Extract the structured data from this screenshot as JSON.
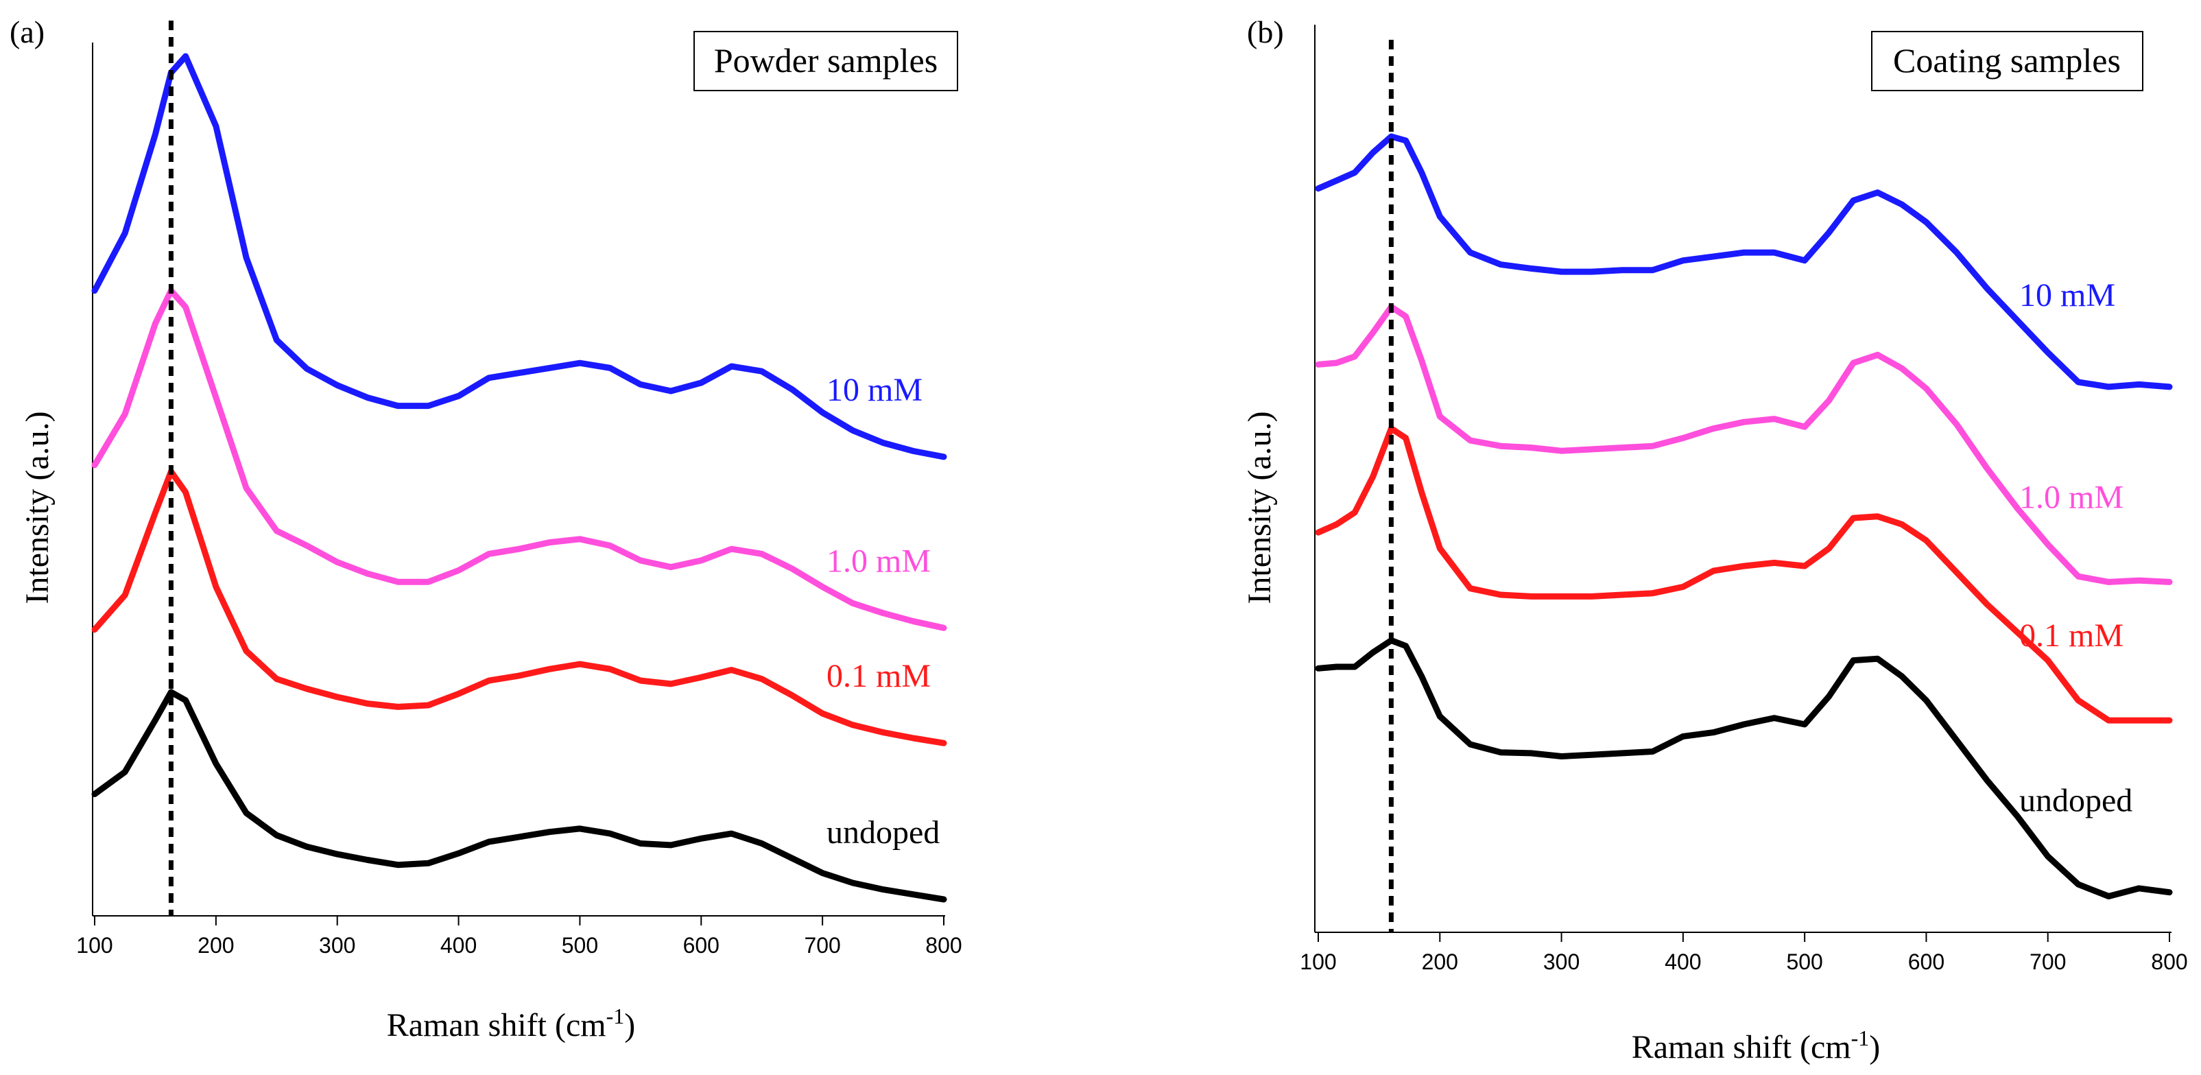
{
  "colors": {
    "undoped": "#000000",
    "0.1 mM": "#ff1a1a",
    "1.0 mM": "#ff4fdc",
    "10 mM": "#1a1aff"
  },
  "chart_data": [
    {
      "type": "line",
      "panel": "(a)",
      "title": "Powder samples",
      "xlabel": "Raman shift (cm-1)",
      "xlabel_main": "Raman shift (cm",
      "xlabel_sup": "-1",
      "xlabel_end": ")",
      "ylabel": "Intensity (a.u.)",
      "xlim": [
        100,
        800
      ],
      "xticks": [
        100,
        200,
        300,
        400,
        500,
        600,
        700,
        800
      ],
      "x_marker": 163,
      "y_units": "arbitrary, offset",
      "grid": false,
      "x": [
        100,
        125,
        150,
        163,
        175,
        200,
        225,
        250,
        275,
        300,
        325,
        350,
        375,
        400,
        425,
        450,
        475,
        500,
        525,
        550,
        575,
        600,
        625,
        650,
        675,
        700,
        725,
        750,
        775,
        800
      ],
      "series": [
        {
          "name": "undoped",
          "label": "undoped",
          "color": "#000000",
          "values": [
            1.28,
            1.55,
            2.18,
            2.52,
            2.42,
            1.65,
            1.05,
            0.78,
            0.64,
            0.55,
            0.48,
            0.42,
            0.44,
            0.56,
            0.7,
            0.76,
            0.82,
            0.86,
            0.8,
            0.68,
            0.66,
            0.74,
            0.8,
            0.68,
            0.5,
            0.32,
            0.2,
            0.12,
            0.06,
            0.0
          ]
        },
        {
          "name": "0.1 mM",
          "label": "0.1 mM",
          "color": "#ff1a1a",
          "values": [
            3.28,
            3.7,
            4.7,
            5.2,
            4.95,
            3.8,
            3.02,
            2.68,
            2.56,
            2.46,
            2.38,
            2.34,
            2.36,
            2.5,
            2.66,
            2.72,
            2.8,
            2.86,
            2.8,
            2.66,
            2.62,
            2.7,
            2.79,
            2.68,
            2.48,
            2.26,
            2.12,
            2.03,
            1.96,
            1.9
          ]
        },
        {
          "name": "1.0 mM",
          "label": "1.0 mM",
          "color": "#ff4fdc",
          "values": [
            5.28,
            5.9,
            7.0,
            7.4,
            7.2,
            6.1,
            5.0,
            4.48,
            4.3,
            4.1,
            3.96,
            3.86,
            3.86,
            4.0,
            4.2,
            4.26,
            4.34,
            4.38,
            4.3,
            4.12,
            4.04,
            4.12,
            4.26,
            4.2,
            4.02,
            3.8,
            3.6,
            3.48,
            3.38,
            3.3
          ]
        },
        {
          "name": "10 mM",
          "label": "10 mM",
          "color": "#1a1aff",
          "values": [
            7.4,
            8.1,
            9.3,
            10.05,
            10.25,
            9.4,
            7.8,
            6.8,
            6.45,
            6.25,
            6.1,
            6.0,
            6.0,
            6.12,
            6.34,
            6.4,
            6.46,
            6.52,
            6.46,
            6.26,
            6.18,
            6.28,
            6.48,
            6.42,
            6.2,
            5.92,
            5.7,
            5.55,
            5.45,
            5.38
          ]
        }
      ],
      "ylim": [
        -0.2,
        10.6
      ]
    },
    {
      "type": "line",
      "panel": "(b)",
      "title": "Coating samples",
      "xlabel": "Raman shift (cm-1)",
      "xlabel_main": "Raman shift (cm",
      "xlabel_sup": "-1",
      "xlabel_end": ")",
      "ylabel": "Intensity (a.u.)",
      "xlim": [
        100,
        800
      ],
      "xticks": [
        100,
        200,
        300,
        400,
        500,
        600,
        700,
        800
      ],
      "x_marker": 160,
      "y_units": "arbitrary, offset",
      "grid": false,
      "x": [
        100,
        115,
        130,
        145,
        160,
        172,
        185,
        200,
        225,
        250,
        275,
        300,
        325,
        350,
        375,
        400,
        425,
        450,
        475,
        500,
        520,
        540,
        560,
        580,
        600,
        625,
        650,
        675,
        700,
        725,
        750,
        775,
        800
      ],
      "series": [
        {
          "name": "undoped",
          "label": "undoped",
          "color": "#000000",
          "values": [
            2.9,
            2.92,
            2.92,
            3.1,
            3.25,
            3.18,
            2.8,
            2.3,
            1.95,
            1.85,
            1.84,
            1.8,
            1.82,
            1.84,
            1.86,
            2.05,
            2.1,
            2.2,
            2.28,
            2.2,
            2.55,
            3.0,
            3.02,
            2.8,
            2.5,
            2.0,
            1.5,
            1.05,
            0.55,
            0.2,
            0.05,
            0.15,
            0.1
          ]
        },
        {
          "name": "0.1 mM",
          "label": "0.1 mM",
          "color": "#ff1a1a",
          "values": [
            4.6,
            4.7,
            4.85,
            5.3,
            5.9,
            5.78,
            5.1,
            4.4,
            3.9,
            3.82,
            3.8,
            3.8,
            3.8,
            3.82,
            3.84,
            3.92,
            4.12,
            4.18,
            4.22,
            4.18,
            4.4,
            4.78,
            4.8,
            4.7,
            4.5,
            4.1,
            3.7,
            3.35,
            3.0,
            2.5,
            2.25,
            2.25,
            2.25
          ]
        },
        {
          "name": "1.0 mM",
          "label": "1.0 mM",
          "color": "#ff4fdc",
          "values": [
            6.7,
            6.72,
            6.8,
            7.1,
            7.42,
            7.3,
            6.75,
            6.05,
            5.75,
            5.68,
            5.66,
            5.62,
            5.64,
            5.66,
            5.68,
            5.78,
            5.9,
            5.98,
            6.02,
            5.92,
            6.25,
            6.72,
            6.82,
            6.65,
            6.4,
            5.95,
            5.4,
            4.9,
            4.45,
            4.05,
            3.98,
            4.0,
            3.98
          ]
        },
        {
          "name": "10 mM",
          "label": "10 mM",
          "color": "#1a1aff",
          "values": [
            8.9,
            9.0,
            9.1,
            9.35,
            9.55,
            9.5,
            9.1,
            8.55,
            8.1,
            7.95,
            7.9,
            7.86,
            7.86,
            7.88,
            7.88,
            8.0,
            8.05,
            8.1,
            8.1,
            8.0,
            8.35,
            8.75,
            8.85,
            8.7,
            8.48,
            8.1,
            7.65,
            7.25,
            6.85,
            6.48,
            6.42,
            6.45,
            6.42
          ]
        }
      ],
      "ylim": [
        -0.4,
        11.0
      ]
    }
  ]
}
